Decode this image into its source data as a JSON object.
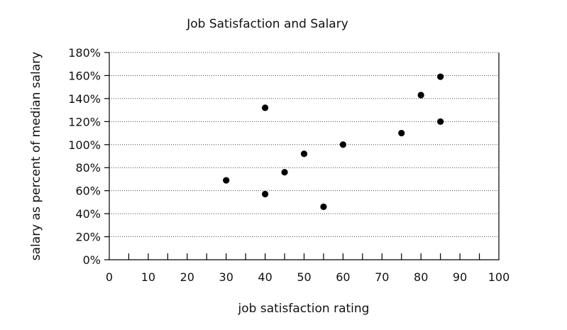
{
  "chart_data": {
    "type": "scatter",
    "title": "Job Satisfaction and Salary",
    "xlabel": "job satisfaction rating",
    "ylabel": "salary as percent of median salary",
    "xlim": [
      0,
      100
    ],
    "ylim": [
      0,
      180
    ],
    "x_ticks": [
      0,
      10,
      20,
      30,
      40,
      50,
      60,
      70,
      80,
      90,
      100
    ],
    "x_minor_step": 5,
    "y_ticks": [
      0,
      20,
      40,
      60,
      80,
      100,
      120,
      140,
      160,
      180
    ],
    "y_tick_labels": [
      "0%",
      "20%",
      "40%",
      "60%",
      "80%",
      "100%",
      "120%",
      "140%",
      "160%",
      "180%"
    ],
    "grid": "horizontal dotted",
    "point_color": "#000000",
    "series": [
      {
        "x": [
          30,
          40,
          40,
          45,
          50,
          55,
          60,
          75,
          80,
          85,
          85
        ],
        "y": [
          69,
          57,
          132,
          76,
          92,
          46,
          100,
          110,
          143,
          120,
          159
        ]
      }
    ]
  }
}
